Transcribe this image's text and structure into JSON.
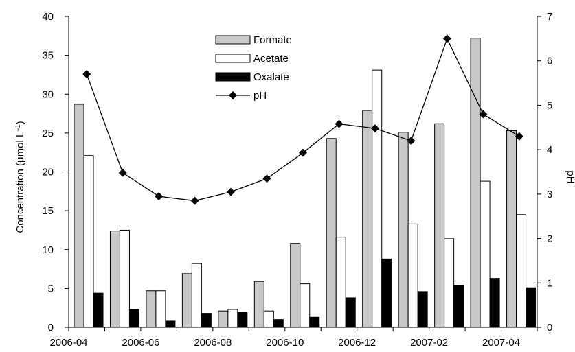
{
  "chart_data": {
    "type": "bar",
    "categories": [
      "2006-04",
      "2006-05",
      "2006-06",
      "2006-07",
      "2006-08",
      "2006-09",
      "2006-10",
      "2006-11",
      "2006-12",
      "2007-01",
      "2007-02",
      "2007-03",
      "2007-04"
    ],
    "x_tick_labels": [
      "2006-04",
      "2006-06",
      "2006-08",
      "2006-10",
      "2006-12",
      "2007-02",
      "2007-04"
    ],
    "series": [
      {
        "name": "Formate",
        "kind": "bar",
        "axis": "left",
        "fill": "#c8c8c8",
        "values": [
          28.7,
          12.4,
          4.7,
          6.9,
          2.1,
          5.9,
          10.8,
          24.3,
          27.9,
          25.1,
          26.2,
          37.2,
          25.3
        ]
      },
      {
        "name": "Acetate",
        "kind": "bar",
        "axis": "left",
        "fill": "#ffffff",
        "values": [
          22.1,
          12.5,
          4.7,
          8.2,
          2.3,
          2.1,
          5.6,
          11.6,
          33.1,
          13.3,
          11.4,
          18.8,
          14.5
        ]
      },
      {
        "name": "Oxalate",
        "kind": "bar",
        "axis": "left",
        "fill": "#000000",
        "values": [
          4.4,
          2.3,
          0.8,
          1.8,
          1.9,
          1.0,
          1.3,
          3.8,
          8.8,
          4.6,
          5.4,
          6.3,
          5.1
        ]
      },
      {
        "name": "pH",
        "kind": "line",
        "axis": "right",
        "marker": "diamond",
        "values": [
          5.7,
          3.48,
          2.95,
          2.85,
          3.05,
          3.35,
          3.93,
          4.58,
          4.48,
          4.2,
          6.5,
          4.8,
          4.3
        ]
      }
    ],
    "y_left": {
      "label": "Concentration (μmol L",
      "label_sup": "−1",
      "label_close": ")",
      "min": 0,
      "max": 40,
      "ticks": [
        0,
        5,
        10,
        15,
        20,
        25,
        30,
        35,
        40
      ]
    },
    "y_right": {
      "label": "pH",
      "min": 0,
      "max": 7,
      "ticks": [
        0,
        1,
        2,
        3,
        4,
        5,
        6,
        7
      ]
    },
    "xlabel": "",
    "title": "",
    "grid": false,
    "legend_position": "top-center"
  }
}
